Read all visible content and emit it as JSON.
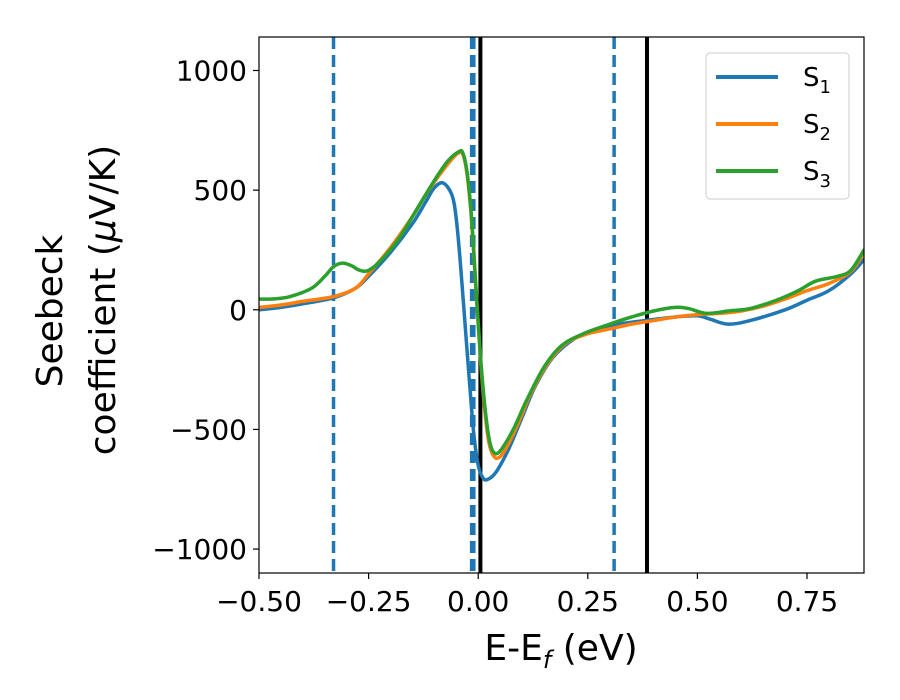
{
  "chart_data": {
    "type": "line",
    "title": "",
    "xlabel": "E-E",
    "xlabel_sub": "f",
    "xlabel_unit": " (eV)",
    "ylabel_line1": "Seebeck",
    "ylabel_line2": "coefficient  (",
    "ylabel_mu": "μ",
    "ylabel_unit_end": "V/K)",
    "xlim": [
      -0.5,
      0.88
    ],
    "ylim": [
      -1100,
      1140
    ],
    "xticks": [
      -0.5,
      -0.25,
      0.0,
      0.25,
      0.5,
      0.75
    ],
    "xtick_labels": [
      "−0.50",
      "−0.25",
      "0.00",
      "0.25",
      "0.50",
      "0.75"
    ],
    "yticks": [
      -1000,
      -500,
      0,
      500,
      1000
    ],
    "ytick_labels": [
      "−1000",
      "−500",
      "0",
      "500",
      "1000"
    ],
    "grid": false,
    "legend_position": "top-right",
    "vlines": [
      {
        "x": -0.33,
        "style": "dashed",
        "color": "#1f77b4"
      },
      {
        "x": -0.015,
        "style": "dashed",
        "color": "#1f77b4"
      },
      {
        "x": -0.01,
        "style": "dashed",
        "color": "#1f77b4"
      },
      {
        "x": 0.31,
        "style": "dashed",
        "color": "#1f77b4"
      },
      {
        "x": 0.005,
        "style": "solid",
        "color": "#000000"
      },
      {
        "x": 0.385,
        "style": "solid",
        "color": "#000000"
      }
    ],
    "series": [
      {
        "name": "S",
        "sub": "1",
        "color": "#1f77b4",
        "points": [
          [
            -0.5,
            0
          ],
          [
            -0.45,
            10
          ],
          [
            -0.4,
            25
          ],
          [
            -0.33,
            50
          ],
          [
            -0.28,
            90
          ],
          [
            -0.25,
            140
          ],
          [
            -0.2,
            240
          ],
          [
            -0.15,
            360
          ],
          [
            -0.12,
            450
          ],
          [
            -0.1,
            510
          ],
          [
            -0.08,
            530
          ],
          [
            -0.06,
            480
          ],
          [
            -0.05,
            380
          ],
          [
            -0.04,
            180
          ],
          [
            -0.03,
            -60
          ],
          [
            -0.02,
            -300
          ],
          [
            -0.01,
            -520
          ],
          [
            0.0,
            -650
          ],
          [
            0.01,
            -700
          ],
          [
            0.02,
            -710
          ],
          [
            0.04,
            -680
          ],
          [
            0.07,
            -580
          ],
          [
            0.1,
            -450
          ],
          [
            0.13,
            -320
          ],
          [
            0.17,
            -200
          ],
          [
            0.22,
            -120
          ],
          [
            0.27,
            -80
          ],
          [
            0.32,
            -60
          ],
          [
            0.38,
            -45
          ],
          [
            0.45,
            -30
          ],
          [
            0.5,
            -25
          ],
          [
            0.53,
            -40
          ],
          [
            0.57,
            -60
          ],
          [
            0.62,
            -45
          ],
          [
            0.7,
            0
          ],
          [
            0.75,
            40
          ],
          [
            0.8,
            80
          ],
          [
            0.85,
            150
          ],
          [
            0.88,
            210
          ]
        ]
      },
      {
        "name": "S",
        "sub": "2",
        "color": "#ff7f0e",
        "points": [
          [
            -0.5,
            10
          ],
          [
            -0.45,
            20
          ],
          [
            -0.4,
            35
          ],
          [
            -0.33,
            55
          ],
          [
            -0.28,
            90
          ],
          [
            -0.25,
            150
          ],
          [
            -0.2,
            260
          ],
          [
            -0.15,
            390
          ],
          [
            -0.12,
            480
          ],
          [
            -0.09,
            560
          ],
          [
            -0.06,
            630
          ],
          [
            -0.045,
            655
          ],
          [
            -0.035,
            650
          ],
          [
            -0.025,
            560
          ],
          [
            -0.015,
            370
          ],
          [
            -0.005,
            80
          ],
          [
            0.005,
            -200
          ],
          [
            0.015,
            -420
          ],
          [
            0.025,
            -560
          ],
          [
            0.04,
            -620
          ],
          [
            0.06,
            -590
          ],
          [
            0.09,
            -480
          ],
          [
            0.12,
            -350
          ],
          [
            0.16,
            -220
          ],
          [
            0.2,
            -140
          ],
          [
            0.25,
            -100
          ],
          [
            0.3,
            -80
          ],
          [
            0.35,
            -60
          ],
          [
            0.4,
            -45
          ],
          [
            0.45,
            -30
          ],
          [
            0.5,
            -20
          ],
          [
            0.55,
            -15
          ],
          [
            0.6,
            -5
          ],
          [
            0.65,
            15
          ],
          [
            0.7,
            45
          ],
          [
            0.75,
            80
          ],
          [
            0.8,
            110
          ],
          [
            0.85,
            160
          ],
          [
            0.88,
            240
          ]
        ]
      },
      {
        "name": "S",
        "sub": "3",
        "color": "#2ca02c",
        "points": [
          [
            -0.5,
            45
          ],
          [
            -0.47,
            45
          ],
          [
            -0.43,
            55
          ],
          [
            -0.38,
            90
          ],
          [
            -0.35,
            140
          ],
          [
            -0.33,
            180
          ],
          [
            -0.31,
            195
          ],
          [
            -0.29,
            185
          ],
          [
            -0.27,
            165
          ],
          [
            -0.25,
            165
          ],
          [
            -0.22,
            210
          ],
          [
            -0.18,
            300
          ],
          [
            -0.14,
            420
          ],
          [
            -0.1,
            540
          ],
          [
            -0.07,
            620
          ],
          [
            -0.045,
            660
          ],
          [
            -0.035,
            655
          ],
          [
            -0.025,
            570
          ],
          [
            -0.015,
            380
          ],
          [
            -0.005,
            90
          ],
          [
            0.005,
            -190
          ],
          [
            0.015,
            -400
          ],
          [
            0.025,
            -540
          ],
          [
            0.035,
            -595
          ],
          [
            0.05,
            -590
          ],
          [
            0.08,
            -500
          ],
          [
            0.11,
            -380
          ],
          [
            0.15,
            -240
          ],
          [
            0.19,
            -150
          ],
          [
            0.24,
            -100
          ],
          [
            0.3,
            -60
          ],
          [
            0.35,
            -30
          ],
          [
            0.4,
            -5
          ],
          [
            0.45,
            10
          ],
          [
            0.48,
            5
          ],
          [
            0.52,
            -15
          ],
          [
            0.57,
            -5
          ],
          [
            0.62,
            5
          ],
          [
            0.68,
            40
          ],
          [
            0.73,
            80
          ],
          [
            0.77,
            120
          ],
          [
            0.82,
            140
          ],
          [
            0.85,
            165
          ],
          [
            0.88,
            250
          ]
        ]
      }
    ]
  }
}
